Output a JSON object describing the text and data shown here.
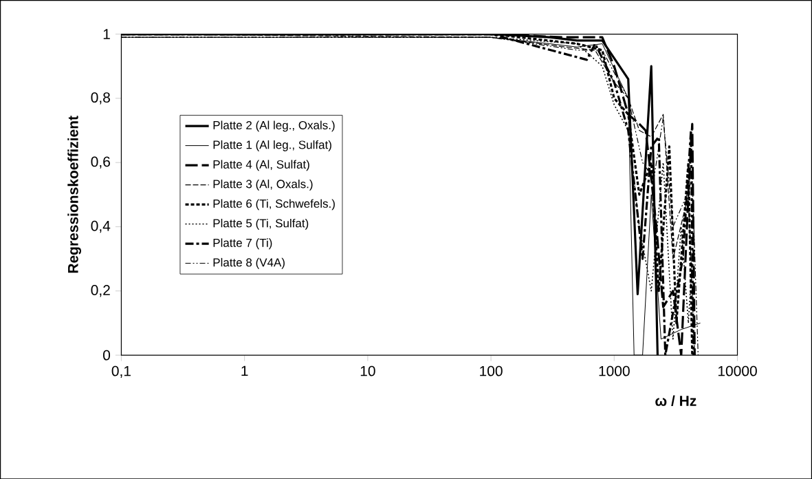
{
  "chart_data": {
    "type": "line",
    "xlabel": "ω / Hz",
    "ylabel": "Regressionskoeffizient",
    "log": "x",
    "xlim": [
      0.1,
      10000
    ],
    "ylim": [
      0,
      1
    ],
    "xticks": [
      {
        "value": 0.1,
        "label": "0,1"
      },
      1,
      10,
      100,
      1000,
      10000
    ],
    "yticks": [
      0,
      {
        "value": 0.2,
        "label": "0,2"
      },
      {
        "value": 0.4,
        "label": "0,4"
      },
      {
        "value": 0.6,
        "label": "0,6"
      },
      {
        "value": 0.8,
        "label": "0,8"
      },
      1
    ],
    "grid": false,
    "legend": "left",
    "marker": "none",
    "series": [
      {
        "name": "Platte 2 (Al leg., Oxals.)",
        "color": "#000000",
        "line_style": "solid",
        "x": [
          0.1,
          100,
          300,
          500,
          800,
          1300,
          1550,
          2000,
          2250
        ],
        "values": [
          1,
          1,
          0.99,
          0.98,
          0.98,
          0.86,
          0.19,
          0.9,
          0
        ]
      },
      {
        "name": "Platte 1 (Al leg., Sulfat)",
        "color": "#000000",
        "line_style": "solid",
        "x": [
          0.1,
          100,
          300,
          500,
          800,
          1300,
          1450,
          1700,
          2000,
          2400,
          3500,
          5000
        ],
        "values": [
          0.99,
          0.99,
          0.97,
          0.96,
          0.97,
          0.8,
          0,
          0,
          0.5,
          0.05,
          0.08,
          0.1
        ]
      },
      {
        "name": "Platte 4 (Al, Sulfat)",
        "color": "#000000",
        "line_style": "dashed",
        "x": [
          0.1,
          100,
          400,
          800,
          1000,
          1300,
          1600,
          1800,
          2000,
          2200,
          2500,
          3000,
          3500,
          4000,
          4300,
          4500
        ],
        "values": [
          1,
          1,
          0.99,
          0.99,
          0.9,
          0.75,
          0.72,
          0.7,
          0.55,
          0.4,
          0.15,
          0.2,
          0,
          0.5,
          0.72,
          0
        ]
      },
      {
        "name": "Platte 3 (Al, Oxals.)",
        "color": "#000000",
        "line_style": "dashed",
        "x": [
          0.1,
          100,
          400,
          700,
          1000,
          1300,
          1600,
          2000,
          2500,
          3000,
          4000,
          4500
        ],
        "values": [
          1,
          0.99,
          0.96,
          0.95,
          0.85,
          0.8,
          0.7,
          0.68,
          0.75,
          0.3,
          0.5,
          0
        ]
      },
      {
        "name": "Platte 6 (Ti, Schwefels.)",
        "color": "#000000",
        "line_style": "dashed",
        "x": [
          0.1,
          100,
          500,
          800,
          1000,
          1300,
          1600,
          2000,
          2300,
          2800,
          3200,
          4000,
          4300
        ],
        "values": [
          1,
          1,
          0.97,
          0.95,
          0.8,
          0.75,
          0.5,
          0.6,
          0.2,
          0.65,
          0.1,
          0.6,
          0
        ]
      },
      {
        "name": "Platte 5 (Ti, Sulfat)",
        "color": "#000000",
        "line_style": "dotted",
        "x": [
          0.1,
          100,
          500,
          800,
          1000,
          1300,
          1600,
          2000,
          2500,
          3000,
          3500,
          4000,
          4300
        ],
        "values": [
          0.99,
          0.99,
          0.97,
          0.9,
          0.78,
          0.7,
          0.4,
          0.2,
          0.6,
          0.05,
          0.4,
          0.1,
          0.3
        ]
      },
      {
        "name": "Platte 7 (Ti)",
        "color": "#000000",
        "line_style": "dashdot",
        "x": [
          0.1,
          100,
          600,
          700,
          1000,
          1300,
          1700,
          2000,
          2300,
          2600,
          3600,
          4200,
          4400
        ],
        "values": [
          1,
          1,
          0.92,
          0.97,
          0.85,
          0.7,
          0.3,
          0.65,
          0.68,
          0,
          0.3,
          0.7,
          0
        ]
      },
      {
        "name": "Platte 8 (V4A)",
        "color": "#000000",
        "line_style": "dashdot",
        "x": [
          0.1,
          100,
          500,
          800,
          1000,
          1300,
          1700,
          2100,
          2500,
          3000,
          3800,
          4300,
          4800
        ],
        "values": [
          0.99,
          0.99,
          0.95,
          0.95,
          0.88,
          0.8,
          0.6,
          0.55,
          0.74,
          0.4,
          0.49,
          0.55,
          0
        ]
      }
    ]
  }
}
